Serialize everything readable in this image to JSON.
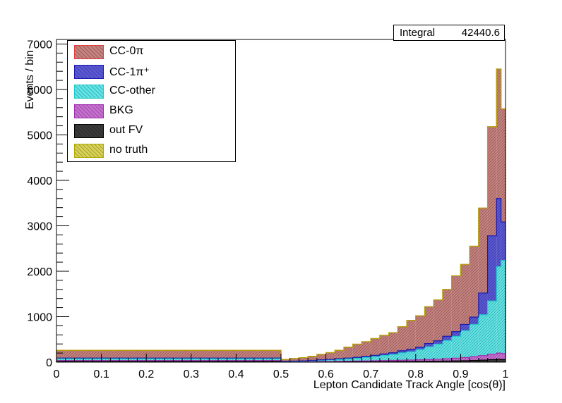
{
  "stats": {
    "label": "Integral",
    "value": "42440.6"
  },
  "legend": [
    {
      "label": "CC-0π",
      "color": "#c8827f",
      "edge": "#e33b3b"
    },
    {
      "label": "CC-1π⁺",
      "color": "#5a58d8",
      "edge": "#1a1ab0"
    },
    {
      "label": "CC-other",
      "color": "#5ee8ea",
      "edge": "#1fc9c9"
    },
    {
      "label": "BKG",
      "color": "#c96fd3",
      "edge": "#a12db0"
    },
    {
      "label": "out FV",
      "color": "#3a3a3a",
      "edge": "#000000"
    },
    {
      "label": "no truth",
      "color": "#d9d354",
      "edge": "#b0a800"
    }
  ],
  "chart_data": {
    "type": "bar",
    "stacked": true,
    "xlabel": "Lepton Candidate Track Angle [cos(θ)]",
    "ylabel": "Events / bin",
    "xlim": [
      0,
      1
    ],
    "ylim": [
      0,
      7100
    ],
    "x_ticks": [
      "0",
      "0.1",
      "0.2",
      "0.3",
      "0.4",
      "0.5",
      "0.6",
      "0.7",
      "0.8",
      "0.9",
      "1"
    ],
    "y_ticks": [
      "0",
      "1000",
      "2000",
      "3000",
      "4000",
      "5000",
      "6000",
      "7000"
    ],
    "bin_edges": [
      0,
      0.5,
      0.52,
      0.54,
      0.56,
      0.58,
      0.6,
      0.62,
      0.64,
      0.66,
      0.68,
      0.7,
      0.72,
      0.74,
      0.76,
      0.78,
      0.8,
      0.82,
      0.84,
      0.86,
      0.88,
      0.9,
      0.92,
      0.94,
      0.96,
      0.98,
      0.99,
      1.0
    ],
    "series": [
      {
        "name": "out FV",
        "values": [
          20,
          2,
          3,
          3,
          4,
          5,
          5,
          6,
          7,
          8,
          9,
          10,
          11,
          12,
          13,
          14,
          16,
          18,
          20,
          24,
          28,
          32,
          38,
          45,
          55,
          60,
          58
        ]
      },
      {
        "name": "BKG",
        "values": [
          15,
          5,
          6,
          7,
          8,
          9,
          11,
          13,
          15,
          17,
          19,
          21,
          24,
          27,
          30,
          33,
          36,
          40,
          45,
          52,
          60,
          70,
          82,
          98,
          120,
          140,
          130
        ]
      },
      {
        "name": "CC-other",
        "values": [
          45,
          5,
          10,
          15,
          20,
          25,
          35,
          40,
          50,
          60,
          75,
          90,
          110,
          130,
          160,
          180,
          225,
          280,
          330,
          400,
          480,
          590,
          710,
          900,
          1170,
          1900,
          2050
        ]
      },
      {
        "name": "CC-1π⁺",
        "values": [
          10,
          3,
          5,
          5,
          8,
          11,
          9,
          16,
          18,
          20,
          27,
          29,
          35,
          36,
          47,
          58,
          53,
          72,
          75,
          94,
          102,
          138,
          160,
          477,
          1435,
          1500,
          845
        ]
      },
      {
        "name": "CC-0π",
        "values": [
          170,
          45,
          56,
          70,
          90,
          120,
          150,
          185,
          240,
          290,
          320,
          370,
          410,
          445,
          530,
          635,
          690,
          810,
          900,
          1030,
          1230,
          1320,
          1560,
          1870,
          2400,
          2850,
          2490
        ]
      },
      {
        "name": "no truth",
        "values": [
          0,
          0,
          0,
          0,
          0,
          0,
          0,
          0,
          0,
          0,
          0,
          0,
          0,
          0,
          0,
          0,
          0,
          0,
          0,
          0,
          0,
          0,
          0,
          0,
          0,
          0,
          0
        ]
      }
    ]
  }
}
